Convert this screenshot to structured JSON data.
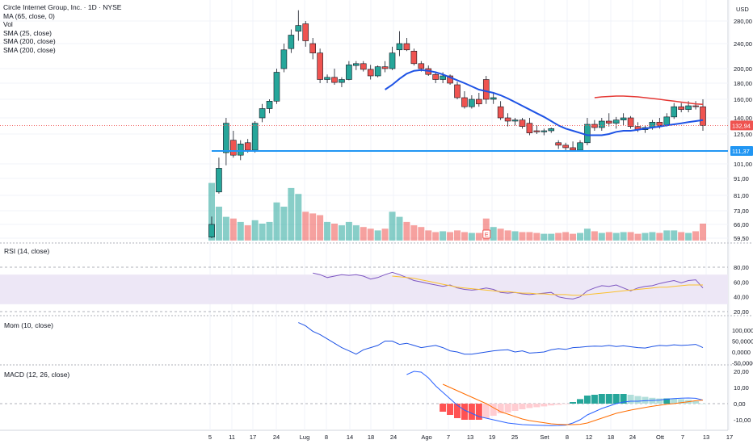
{
  "legend": {
    "title": "Circle Internet Group, Inc. · 1D · NYSE",
    "ma": "MA (65, close, 0)",
    "vol": "Vol",
    "sma25": "SMA (25, close)",
    "sma200a": "SMA (200, close)",
    "sma200b": "SMA (200, close)"
  },
  "panels": {
    "rsi": "RSI (14, close)",
    "mom": "Mom (10, close)",
    "macd": "MACD (12, 26, close)"
  },
  "currency": "USD",
  "price_axis": [
    "280,00",
    "240,00",
    "200,00",
    "180,00",
    "160,00",
    "140,00",
    "125,00",
    "101,00",
    "91,00",
    "81,00",
    "73,00",
    "66,00",
    "59,50"
  ],
  "rsi_axis": [
    "80,00",
    "60,00",
    "40,00",
    "20,00"
  ],
  "mom_axis": [
    "100,0000",
    "50,0000",
    "0,0000",
    "-50,0000"
  ],
  "macd_axis": [
    "20,00",
    "10,00",
    "0,00",
    "-10,00"
  ],
  "time_axis": [
    "5",
    "11",
    "17",
    "24",
    "Lug",
    "8",
    "14",
    "18",
    "24",
    "Ago",
    "7",
    "13",
    "19",
    "25",
    "Set",
    "8",
    "12",
    "18",
    "24",
    "Ott",
    "7",
    "13",
    "17"
  ],
  "last_price_tag": "132,94",
  "support_tag": "111,37",
  "earnings_marker": "E",
  "colors": {
    "up": "#26a69a",
    "down": "#ef5350",
    "sma_blue": "#1e53e5",
    "sma_red": "#e53935",
    "support": "#2196f3",
    "rsi_line": "#7e57c2",
    "rsi_ma": "#fbc02d",
    "rsi_band": "#ede7f6"
  },
  "chart_data": {
    "type": "candlestick",
    "symbol": "CRCL",
    "candles": [
      {
        "o": 60,
        "h": 70,
        "l": 55,
        "c": 66
      },
      {
        "o": 83,
        "h": 106,
        "l": 82,
        "c": 98
      },
      {
        "o": 110,
        "h": 140,
        "l": 100,
        "c": 135
      },
      {
        "o": 120,
        "h": 128,
        "l": 106,
        "c": 108
      },
      {
        "o": 108,
        "h": 120,
        "l": 104,
        "c": 117
      },
      {
        "o": 118,
        "h": 121,
        "l": 110,
        "c": 112
      },
      {
        "o": 112,
        "h": 137,
        "l": 110,
        "c": 135
      },
      {
        "o": 140,
        "h": 155,
        "l": 136,
        "c": 150
      },
      {
        "o": 150,
        "h": 160,
        "l": 145,
        "c": 158
      },
      {
        "o": 158,
        "h": 200,
        "l": 155,
        "c": 195
      },
      {
        "o": 200,
        "h": 240,
        "l": 195,
        "c": 230
      },
      {
        "o": 232,
        "h": 265,
        "l": 225,
        "c": 255
      },
      {
        "o": 262,
        "h": 299,
        "l": 245,
        "c": 272
      },
      {
        "o": 275,
        "h": 280,
        "l": 235,
        "c": 245
      },
      {
        "o": 240,
        "h": 250,
        "l": 215,
        "c": 225
      },
      {
        "o": 225,
        "h": 232,
        "l": 180,
        "c": 185
      },
      {
        "o": 185,
        "h": 192,
        "l": 180,
        "c": 188
      },
      {
        "o": 188,
        "h": 200,
        "l": 178,
        "c": 181
      },
      {
        "o": 181,
        "h": 188,
        "l": 175,
        "c": 185
      },
      {
        "o": 185,
        "h": 212,
        "l": 184,
        "c": 206
      },
      {
        "o": 205,
        "h": 212,
        "l": 198,
        "c": 208
      },
      {
        "o": 208,
        "h": 212,
        "l": 196,
        "c": 199
      },
      {
        "o": 199,
        "h": 206,
        "l": 185,
        "c": 190
      },
      {
        "o": 190,
        "h": 205,
        "l": 188,
        "c": 203
      },
      {
        "o": 203,
        "h": 212,
        "l": 195,
        "c": 200
      },
      {
        "o": 200,
        "h": 235,
        "l": 198,
        "c": 225
      },
      {
        "o": 230,
        "h": 262,
        "l": 220,
        "c": 240
      },
      {
        "o": 240,
        "h": 250,
        "l": 228,
        "c": 230
      },
      {
        "o": 228,
        "h": 232,
        "l": 205,
        "c": 208
      },
      {
        "o": 208,
        "h": 212,
        "l": 196,
        "c": 200
      },
      {
        "o": 200,
        "h": 205,
        "l": 190,
        "c": 192
      },
      {
        "o": 192,
        "h": 195,
        "l": 180,
        "c": 185
      },
      {
        "o": 185,
        "h": 195,
        "l": 180,
        "c": 190
      },
      {
        "o": 190,
        "h": 192,
        "l": 178,
        "c": 180
      },
      {
        "o": 178,
        "h": 182,
        "l": 160,
        "c": 162
      },
      {
        "o": 162,
        "h": 170,
        "l": 150,
        "c": 152
      },
      {
        "o": 152,
        "h": 165,
        "l": 150,
        "c": 160
      },
      {
        "o": 160,
        "h": 168,
        "l": 152,
        "c": 155
      },
      {
        "o": 185,
        "h": 190,
        "l": 155,
        "c": 160
      },
      {
        "o": 160,
        "h": 168,
        "l": 155,
        "c": 162
      },
      {
        "o": 152,
        "h": 158,
        "l": 138,
        "c": 140
      },
      {
        "o": 140,
        "h": 145,
        "l": 132,
        "c": 137
      },
      {
        "o": 137,
        "h": 140,
        "l": 133,
        "c": 138
      },
      {
        "o": 138,
        "h": 140,
        "l": 130,
        "c": 132
      },
      {
        "o": 135,
        "h": 140,
        "l": 124,
        "c": 126
      },
      {
        "o": 128,
        "h": 133,
        "l": 125,
        "c": 127
      },
      {
        "o": 127,
        "h": 130,
        "l": 124,
        "c": 128
      },
      {
        "o": 128,
        "h": 131,
        "l": 126,
        "c": 130
      },
      {
        "o": 118,
        "h": 120,
        "l": 113,
        "c": 116
      },
      {
        "o": 116,
        "h": 118,
        "l": 112,
        "c": 114
      },
      {
        "o": 114,
        "h": 119,
        "l": 111,
        "c": 112
      },
      {
        "o": 112,
        "h": 120,
        "l": 111,
        "c": 118
      },
      {
        "o": 118,
        "h": 140,
        "l": 116,
        "c": 134
      },
      {
        "o": 134,
        "h": 138,
        "l": 128,
        "c": 131
      },
      {
        "o": 131,
        "h": 140,
        "l": 128,
        "c": 137
      },
      {
        "o": 137,
        "h": 145,
        "l": 132,
        "c": 135
      },
      {
        "o": 135,
        "h": 141,
        "l": 130,
        "c": 138
      },
      {
        "o": 138,
        "h": 145,
        "l": 133,
        "c": 140
      },
      {
        "o": 140,
        "h": 142,
        "l": 130,
        "c": 132
      },
      {
        "o": 132,
        "h": 136,
        "l": 127,
        "c": 129
      },
      {
        "o": 129,
        "h": 133,
        "l": 126,
        "c": 131
      },
      {
        "o": 131,
        "h": 138,
        "l": 129,
        "c": 136
      },
      {
        "o": 136,
        "h": 140,
        "l": 130,
        "c": 133
      },
      {
        "o": 133,
        "h": 145,
        "l": 132,
        "c": 141
      },
      {
        "o": 141,
        "h": 156,
        "l": 139,
        "c": 152
      },
      {
        "o": 152,
        "h": 156,
        "l": 146,
        "c": 149
      },
      {
        "o": 149,
        "h": 158,
        "l": 146,
        "c": 153
      },
      {
        "o": 153,
        "h": 158,
        "l": 149,
        "c": 152
      },
      {
        "o": 152,
        "h": 160,
        "l": 128,
        "c": 132.94
      }
    ],
    "volume": [
      68,
      40,
      28,
      26,
      22,
      18,
      24,
      20,
      22,
      45,
      40,
      62,
      55,
      34,
      32,
      30,
      22,
      20,
      18,
      22,
      18,
      16,
      14,
      12,
      14,
      34,
      28,
      22,
      18,
      16,
      12,
      10,
      11,
      10,
      12,
      10,
      9,
      9,
      26,
      16,
      14,
      12,
      11,
      10,
      10,
      9,
      8,
      8,
      9,
      10,
      8,
      9,
      14,
      11,
      9,
      10,
      9,
      10,
      10,
      8,
      9,
      10,
      9,
      12,
      12,
      10,
      9,
      11,
      20
    ],
    "sma25": [
      null,
      null,
      null,
      null,
      null,
      null,
      null,
      null,
      null,
      null,
      null,
      null,
      null,
      null,
      null,
      null,
      null,
      null,
      null,
      null,
      null,
      null,
      null,
      null,
      172,
      178,
      186,
      193,
      197,
      198,
      197,
      195,
      192,
      188,
      184,
      180,
      176,
      172,
      170,
      168,
      165,
      161,
      157,
      153,
      149,
      145,
      141,
      137,
      133,
      130,
      128,
      126,
      124,
      124,
      124,
      125,
      127,
      128,
      128,
      129,
      130,
      131,
      132,
      133,
      134,
      135,
      136,
      137,
      138
    ],
    "sma200": [
      null,
      null,
      null,
      null,
      null,
      null,
      null,
      null,
      null,
      null,
      null,
      null,
      null,
      null,
      null,
      null,
      null,
      null,
      null,
      null,
      null,
      null,
      null,
      null,
      null,
      null,
      null,
      null,
      null,
      null,
      null,
      null,
      null,
      null,
      null,
      null,
      null,
      null,
      null,
      null,
      null,
      null,
      null,
      null,
      null,
      null,
      null,
      null,
      null,
      null,
      null,
      null,
      null,
      162,
      163,
      163.5,
      164,
      164,
      163.5,
      163,
      162,
      161,
      160,
      159,
      158,
      157,
      156,
      155,
      154.5
    ],
    "support": 111.37,
    "last": 132.94,
    "ylim": [
      55,
      300
    ],
    "rsi": [
      null,
      null,
      null,
      null,
      null,
      null,
      null,
      null,
      null,
      null,
      null,
      null,
      null,
      null,
      72,
      70,
      66,
      68,
      70,
      69,
      70,
      68,
      64,
      66,
      70,
      73,
      70,
      66,
      62,
      60,
      58,
      56,
      54,
      56,
      52,
      50,
      49,
      50,
      52,
      50,
      46,
      45,
      46,
      44,
      43,
      44,
      45,
      46,
      40,
      38,
      37,
      40,
      48,
      52,
      55,
      54,
      56,
      52,
      48,
      52,
      54,
      55,
      58,
      60,
      62,
      59,
      62,
      63,
      52
    ],
    "rsi_ma": [
      null,
      null,
      null,
      null,
      null,
      null,
      null,
      null,
      null,
      null,
      null,
      null,
      null,
      null,
      null,
      null,
      null,
      null,
      null,
      null,
      null,
      null,
      null,
      null,
      null,
      68,
      67,
      66,
      65,
      63,
      61,
      59,
      57,
      55,
      53,
      52,
      51,
      50,
      49,
      48,
      47,
      47,
      46,
      45,
      45,
      44,
      44,
      43,
      43,
      43,
      42,
      42,
      43,
      44,
      45,
      46,
      47,
      48,
      49,
      50,
      51,
      52,
      53,
      53,
      54,
      55,
      56,
      56,
      56
    ],
    "mom": [
      null,
      null,
      null,
      null,
      null,
      null,
      null,
      null,
      null,
      null,
      null,
      null,
      135,
      120,
      95,
      80,
      60,
      40,
      20,
      5,
      -10,
      10,
      20,
      30,
      50,
      50,
      35,
      40,
      30,
      20,
      25,
      30,
      20,
      5,
      0,
      -10,
      -10,
      -5,
      0,
      5,
      8,
      10,
      0,
      5,
      -5,
      -3,
      0,
      10,
      15,
      12,
      20,
      22,
      25,
      27,
      26,
      30,
      25,
      28,
      24,
      20,
      18,
      25,
      30,
      28,
      33,
      30,
      32,
      35,
      20
    ],
    "macd": [
      null,
      null,
      null,
      null,
      null,
      null,
      null,
      null,
      null,
      null,
      null,
      null,
      null,
      null,
      null,
      null,
      null,
      null,
      null,
      null,
      null,
      null,
      null,
      null,
      null,
      null,
      null,
      18,
      20,
      19.5,
      16,
      11,
      7,
      3,
      -1,
      -4,
      -6,
      -8,
      -9,
      -10,
      -11,
      -12,
      -12.5,
      -13,
      -13.2,
      -13.4,
      -13.5,
      -13.6,
      -13.5,
      -13.3,
      -12,
      -10,
      -7,
      -5,
      -3,
      -1.5,
      0,
      1,
      1.5,
      1.5,
      1.8,
      2,
      2.2,
      2.8,
      3.1,
      3.4,
      3.5,
      3.3,
      2.2
    ],
    "macd_signal": [
      null,
      null,
      null,
      null,
      null,
      null,
      null,
      null,
      null,
      null,
      null,
      null,
      null,
      null,
      null,
      null,
      null,
      null,
      null,
      null,
      null,
      null,
      null,
      null,
      null,
      null,
      null,
      null,
      null,
      null,
      null,
      null,
      12,
      10,
      8,
      6,
      4,
      2,
      0,
      -2.5,
      -5,
      -6.5,
      -8,
      -9.5,
      -10.5,
      -11.2,
      -11.8,
      -12.5,
      -12.8,
      -13,
      -13,
      -12.8,
      -12,
      -10.5,
      -9,
      -7.5,
      -6,
      -5,
      -4,
      -3.2,
      -2.4,
      -1.6,
      -1,
      -0.4,
      0,
      0.6,
      1.2,
      1.8,
      2.2
    ],
    "macd_hist": [
      null,
      null,
      null,
      null,
      null,
      null,
      null,
      null,
      null,
      null,
      null,
      null,
      null,
      null,
      null,
      null,
      null,
      null,
      null,
      null,
      null,
      null,
      null,
      null,
      null,
      null,
      null,
      null,
      null,
      null,
      null,
      null,
      -5,
      -7,
      -9,
      -10,
      -10,
      -10,
      -9,
      -7.5,
      -6,
      -5.5,
      -4.5,
      -3.5,
      -2.7,
      -2.2,
      -1.7,
      -1.1,
      -0.7,
      -0.3,
      1,
      2.8,
      5,
      5.5,
      6,
      6,
      6,
      6,
      5.5,
      4.7,
      4.2,
      3.6,
      3.2,
      3.2,
      3.1,
      2.8,
      2.3,
      1.5,
      0
    ]
  }
}
